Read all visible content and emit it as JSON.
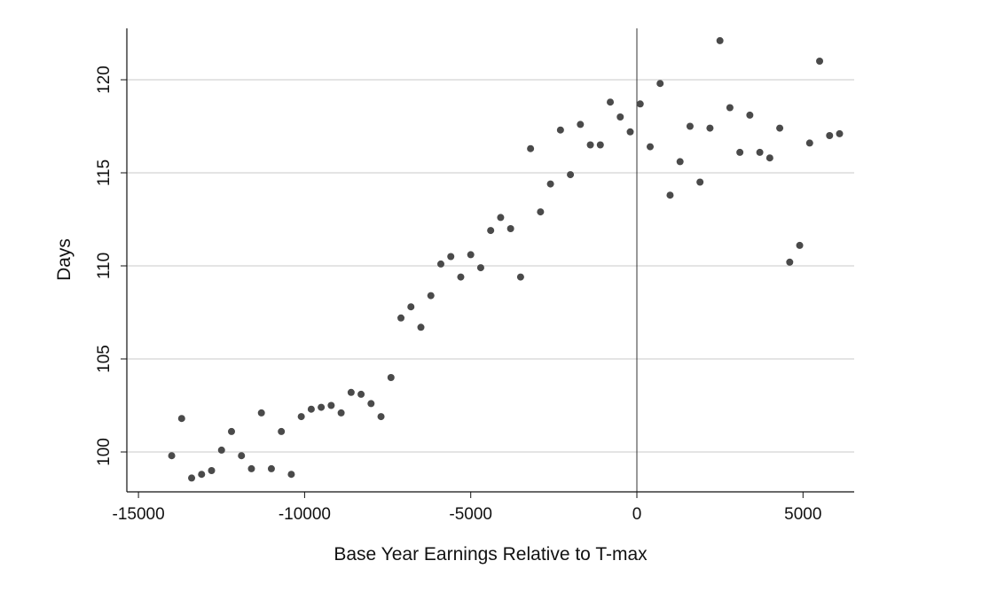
{
  "chart_data": {
    "type": "scatter",
    "xlabel": "Base Year Earnings Relative to T-max",
    "ylabel": "Days",
    "xlim": [
      -14400,
      6500
    ],
    "ylim": [
      98.9,
      123.1
    ],
    "xticks": [
      -15000,
      -10000,
      -5000,
      0,
      5000
    ],
    "xtick_labels": [
      "-15000",
      "-10000",
      "-5000",
      "0",
      "5000"
    ],
    "yticks": [
      100,
      105,
      110,
      115,
      120
    ],
    "ytick_labels": [
      "100",
      "105",
      "110",
      "115",
      "120"
    ],
    "grid": "horizontal",
    "reference_line_x": 0,
    "marker_color": "#4a4a4a",
    "gridline_color": "#c8c8c8",
    "series": [
      {
        "x": [
          -14000,
          -13700,
          -13400,
          -13100,
          -12800,
          -12500,
          -12200,
          -11900,
          -11600,
          -11300,
          -11000,
          -10700,
          -10400,
          -10100,
          -9800,
          -9500,
          -9200,
          -8900,
          -8600,
          -8300,
          -8000,
          -7700,
          -7400,
          -7100,
          -6800,
          -6500,
          -6200,
          -5900,
          -5600,
          -5300,
          -5000,
          -4700,
          -4400,
          -4100,
          -3800,
          -3500,
          -3200,
          -2900,
          -2600,
          -2300,
          -2000,
          -1700,
          -1400,
          -1100,
          -800,
          -500,
          -200,
          100,
          400,
          700,
          1000,
          1300,
          1600,
          1900,
          2200,
          2500,
          2800,
          3100,
          3400,
          3700,
          4000,
          4300,
          4600,
          4900,
          5200,
          5500,
          5800,
          6100
        ],
        "y": [
          99.8,
          101.8,
          98.6,
          98.8,
          99.0,
          100.1,
          101.1,
          99.8,
          99.1,
          102.1,
          99.1,
          101.1,
          98.8,
          101.9,
          102.3,
          102.4,
          102.5,
          102.1,
          103.2,
          103.1,
          102.6,
          101.9,
          104.0,
          107.2,
          107.8,
          106.7,
          108.4,
          110.1,
          110.5,
          109.4,
          110.6,
          109.9,
          111.9,
          112.6,
          112.0,
          109.4,
          116.3,
          112.9,
          114.4,
          117.3,
          114.9,
          117.6,
          116.5,
          116.5,
          118.8,
          118.0,
          117.2,
          118.7,
          116.4,
          119.8,
          113.8,
          115.6,
          117.5,
          114.5,
          117.4,
          122.1,
          118.5,
          116.1,
          118.1,
          116.1,
          115.8,
          117.4,
          110.2,
          111.1,
          116.6,
          121.0,
          117.0,
          117.1
        ]
      }
    ]
  }
}
